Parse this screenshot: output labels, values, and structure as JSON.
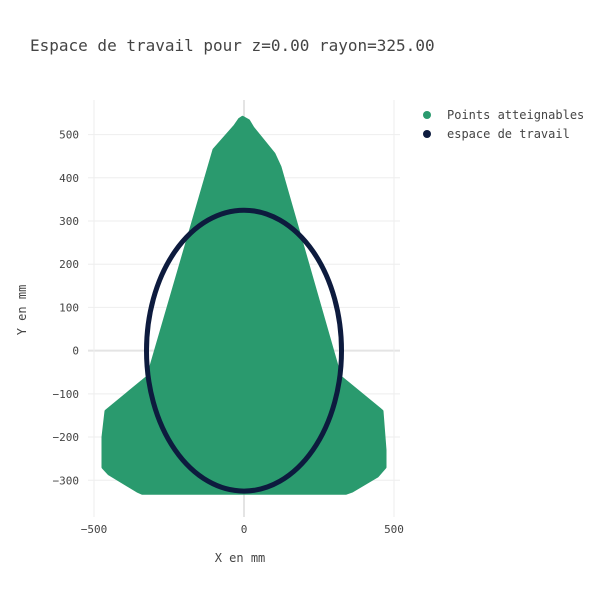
{
  "chart_data": {
    "type": "scatter",
    "title": "Espace de travail pour z=0.00  rayon=325.00",
    "xlabel": "X en mm",
    "ylabel": "Y en mm",
    "xlim": [
      -520,
      520
    ],
    "ylim": [
      -385,
      580
    ],
    "x_ticks": [
      -500,
      0,
      500
    ],
    "x_tick_labels": [
      "−500",
      "0",
      "500"
    ],
    "y_ticks": [
      -300,
      -200,
      -100,
      0,
      100,
      200,
      300,
      400,
      500
    ],
    "y_tick_labels": [
      "−300",
      "−200",
      "−100",
      "0",
      "100",
      "200",
      "300",
      "400",
      "500"
    ],
    "grid": true,
    "legend_position": "top-right",
    "series": [
      {
        "name": "Points atteignables",
        "color": "#2a9a6e",
        "kind": "filled-region",
        "boundary": [
          [
            -5,
            540
          ],
          [
            15,
            532
          ],
          [
            30,
            515
          ],
          [
            100,
            455
          ],
          [
            120,
            425
          ],
          [
            320,
            -60
          ],
          [
            460,
            -140
          ],
          [
            470,
            -230
          ],
          [
            470,
            -270
          ],
          [
            445,
            -290
          ],
          [
            360,
            -325
          ],
          [
            340,
            -330
          ],
          [
            -340,
            -330
          ],
          [
            -355,
            -325
          ],
          [
            -450,
            -285
          ],
          [
            -470,
            -270
          ],
          [
            -470,
            -200
          ],
          [
            -460,
            -140
          ],
          [
            -320,
            -60
          ],
          [
            -100,
            465
          ],
          [
            -30,
            520
          ],
          [
            -15,
            535
          ]
        ]
      },
      {
        "name": "espace de travail",
        "color": "#0d1b3e",
        "kind": "circle",
        "center": [
          0,
          0
        ],
        "radius": 325
      }
    ]
  }
}
